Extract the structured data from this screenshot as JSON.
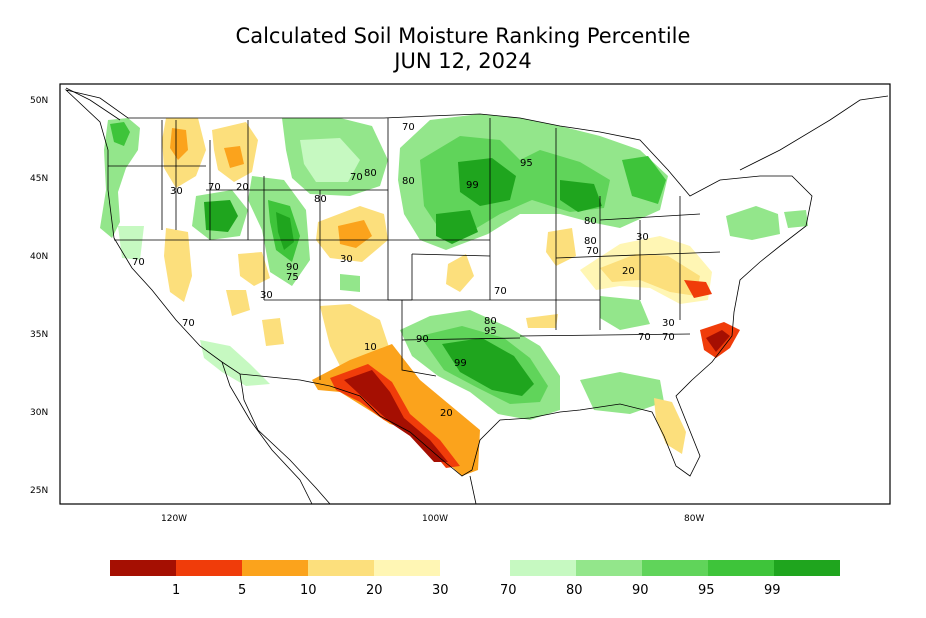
{
  "title": {
    "line1": "Calculated Soil Moisture Ranking Percentile",
    "line2": "JUN 12, 2024"
  },
  "axes": {
    "y_ticks": [
      "50N",
      "45N",
      "40N",
      "35N",
      "30N",
      "25N"
    ],
    "x_ticks": [
      "120W",
      "100W",
      "80W"
    ]
  },
  "contour_labels": [
    "70",
    "30",
    "70",
    "20",
    "80",
    "70",
    "80",
    "70",
    "80",
    "99",
    "95",
    "80",
    "30",
    "80",
    "70",
    "30",
    "20",
    "30",
    "70",
    "70",
    "80",
    "95",
    "90",
    "99",
    "70",
    "20",
    "10",
    "90",
    "75",
    "30",
    "70",
    "30"
  ],
  "legend": {
    "dry": [
      {
        "color": "#a50f02",
        "label": "1"
      },
      {
        "color": "#f03c0a",
        "label": "5"
      },
      {
        "color": "#fba31c",
        "label": "10"
      },
      {
        "color": "#fcdf7c",
        "label": "20"
      },
      {
        "color": "#fff6b4",
        "label": "30"
      }
    ],
    "wet": [
      {
        "color": "#c6f9c1",
        "label": "70"
      },
      {
        "color": "#93e68b",
        "label": "80"
      },
      {
        "color": "#60d45a",
        "label": "90"
      },
      {
        "color": "#3ec43a",
        "label": "95"
      },
      {
        "color": "#1fa51e",
        "label": "99"
      }
    ]
  }
}
